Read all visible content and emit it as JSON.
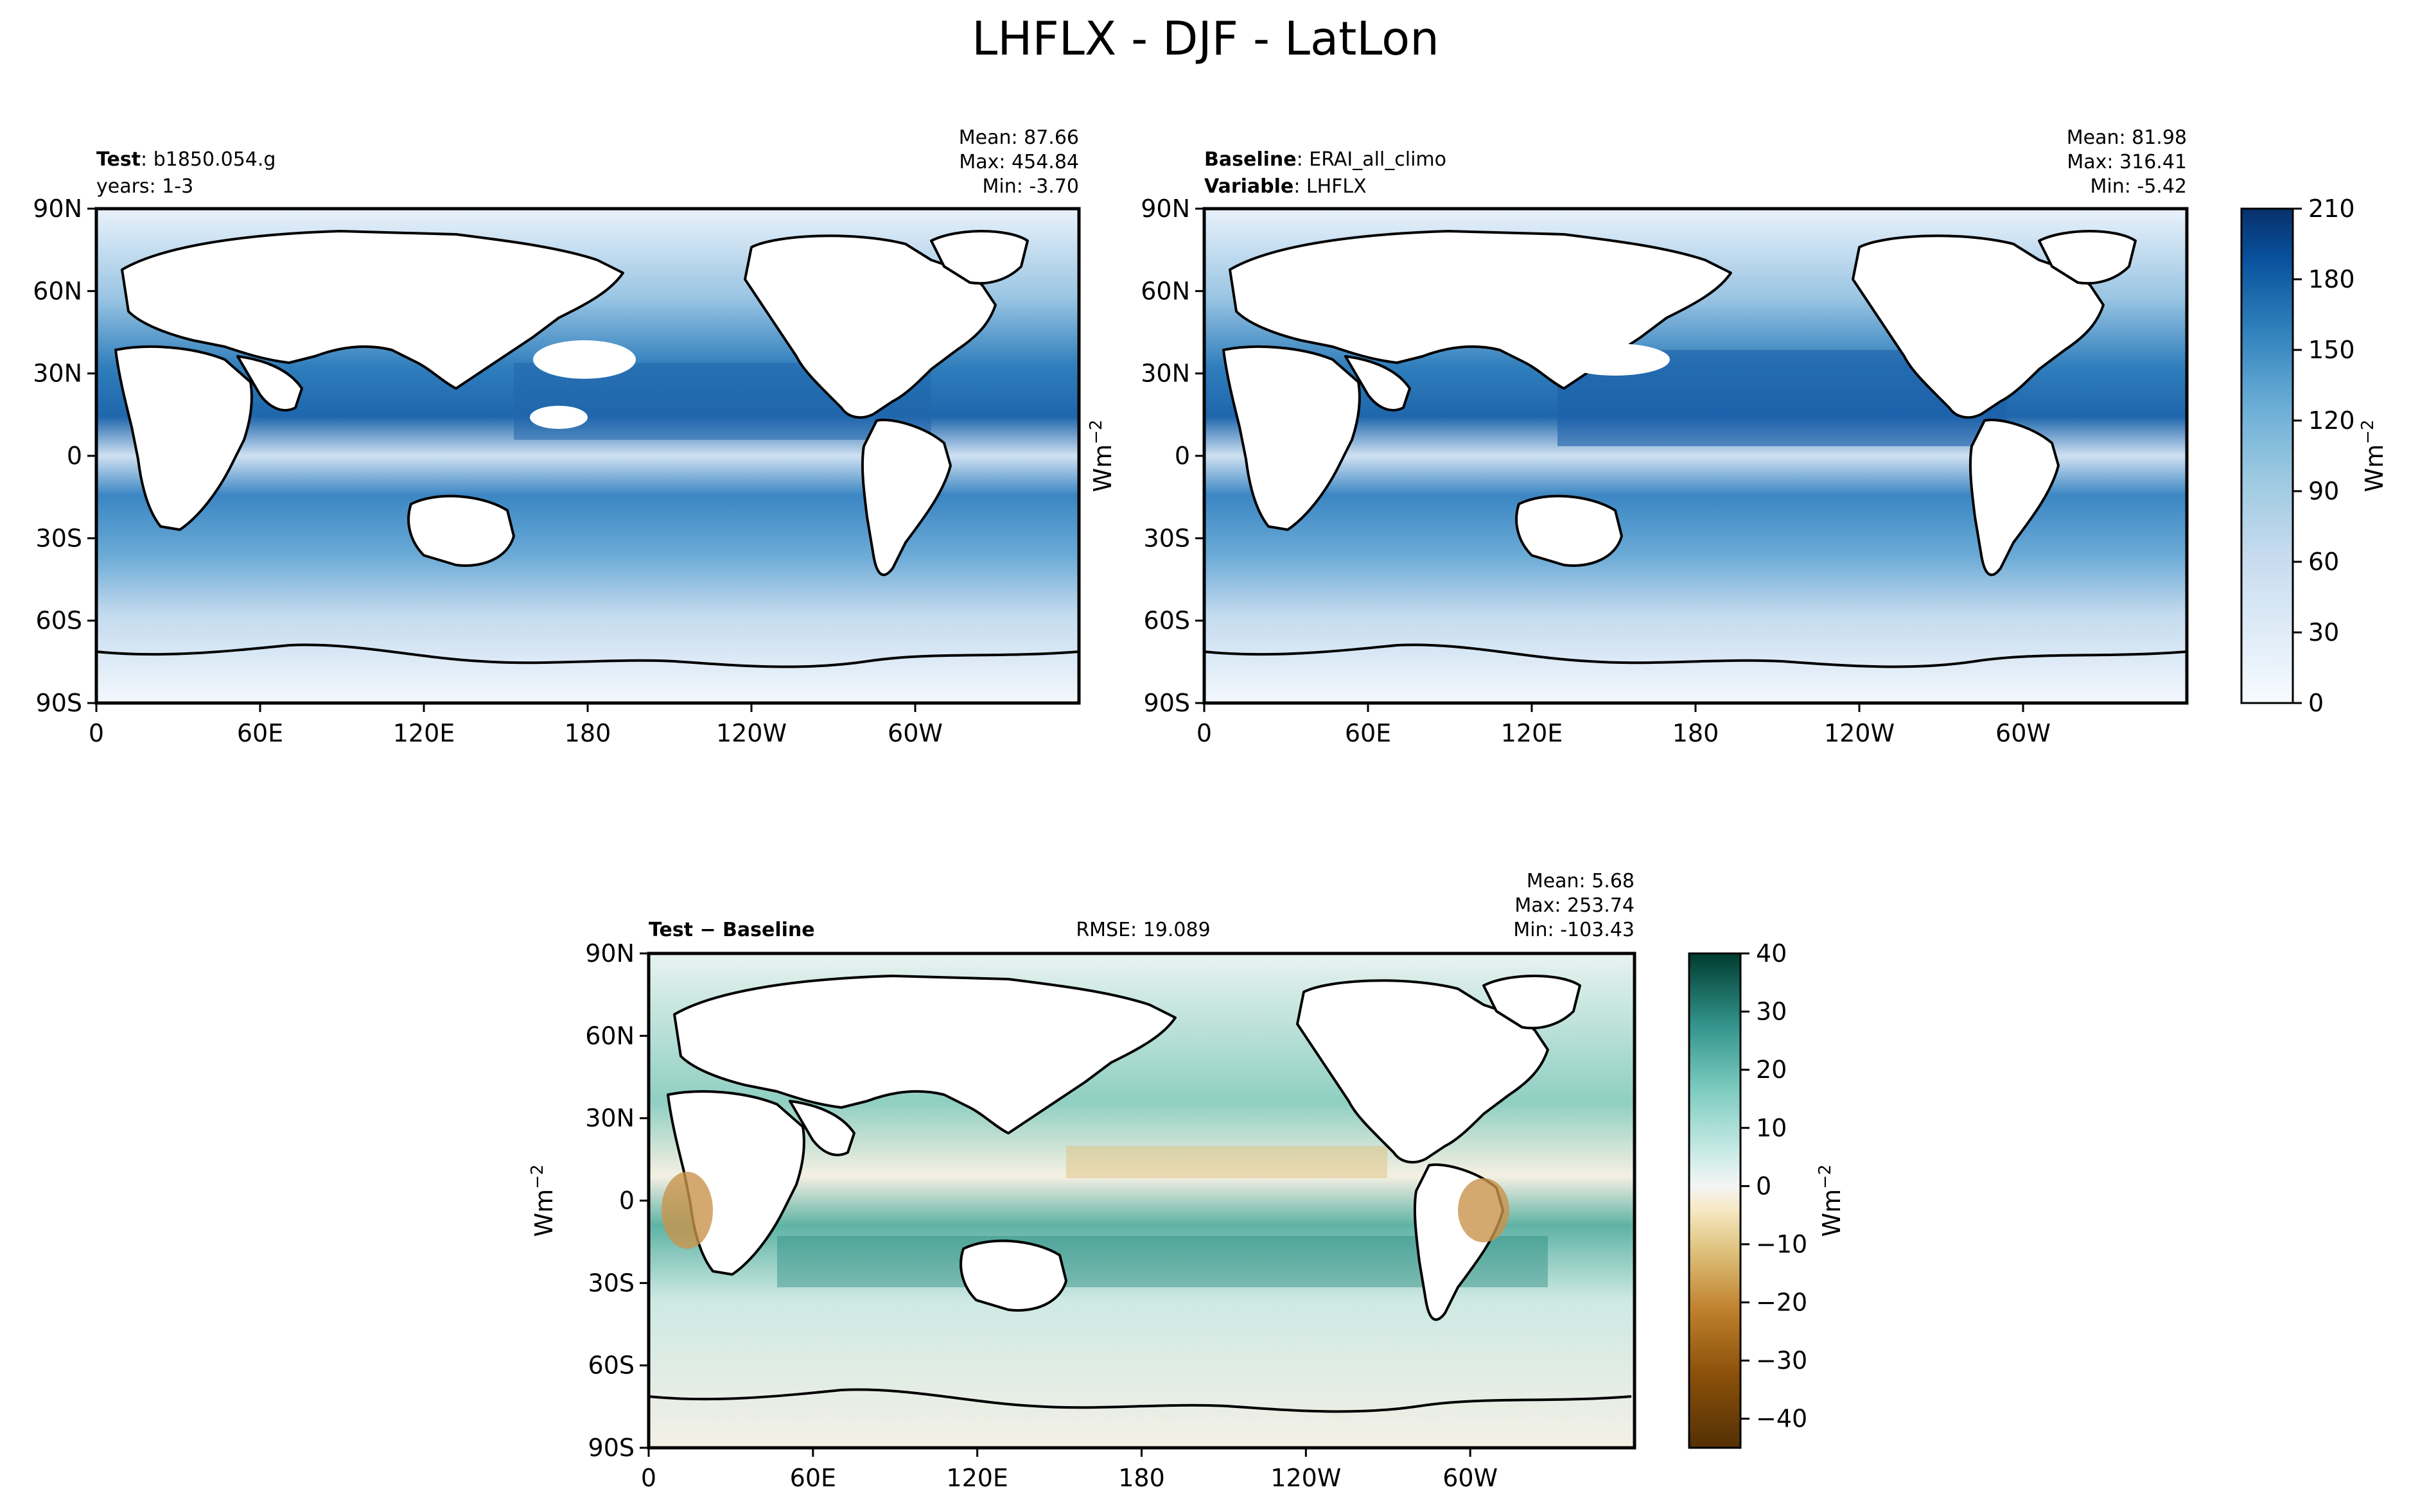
{
  "chart_data": {
    "type": "heatmap",
    "title": "LHFLX - DJF - LatLon",
    "x_ticks": [
      "0",
      "60E",
      "120E",
      "180",
      "120W",
      "60W"
    ],
    "y_ticks": [
      "90N",
      "60N",
      "30N",
      "0",
      "30S",
      "60S",
      "90S"
    ],
    "panels": [
      {
        "id": "test",
        "label_key": "Test",
        "label_value": "b1850.054.g",
        "line2": "years: 1-3",
        "stats": {
          "mean": "Mean: 87.66",
          "max": "Max: 454.84",
          "min": "Min: -3.70"
        },
        "colormap": "Blues",
        "range": [
          0,
          210
        ]
      },
      {
        "id": "baseline",
        "label_key": "Baseline",
        "label_value": "ERAI_all_climo",
        "line2_key": "Variable",
        "line2_value": "LHFLX",
        "stats": {
          "mean": "Mean: 81.98",
          "max": "Max: 316.41",
          "min": "Min: -5.42"
        },
        "colormap": "Blues",
        "range": [
          0,
          210
        ]
      },
      {
        "id": "diff",
        "label": "Test − Baseline",
        "rmse": "RMSE: 19.089",
        "stats": {
          "mean": "Mean:  5.68",
          "max": "Max: 253.74",
          "min": "Min: -103.43"
        },
        "colormap": "BrBG",
        "range": [
          -45,
          40
        ]
      }
    ],
    "colorbars": [
      {
        "label": "Wm",
        "label_sup": "−2",
        "ticks": [
          "0",
          "30",
          "60",
          "90",
          "120",
          "150",
          "180",
          "210"
        ]
      },
      {
        "label": "Wm",
        "label_sup": "−2",
        "ticks": [
          "−40",
          "−30",
          "−20",
          "−10",
          "0",
          "10",
          "20",
          "30",
          "40"
        ]
      }
    ],
    "ylabels": [
      {
        "label": "Wm",
        "label_sup": "−2"
      },
      {
        "label": "Wm",
        "label_sup": "−2"
      }
    ]
  }
}
